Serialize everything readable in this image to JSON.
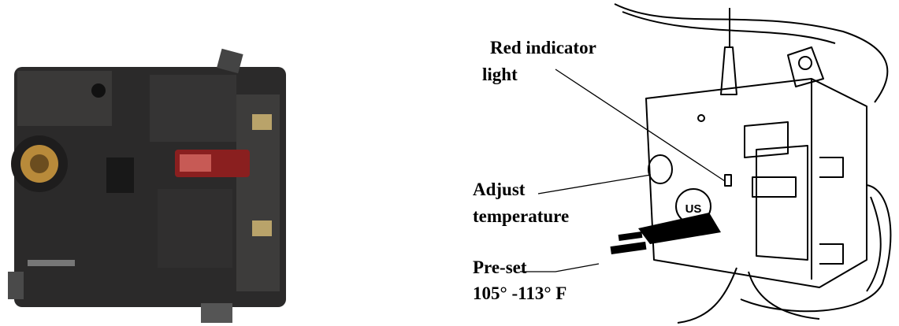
{
  "callouts": [
    {
      "lines": [
        "Red indicator",
        "light"
      ]
    },
    {
      "lines": [
        "Adjust",
        "temperature"
      ]
    },
    {
      "lines": [
        "Pre-set",
        "105° -113° F"
      ]
    }
  ],
  "logo": "US"
}
